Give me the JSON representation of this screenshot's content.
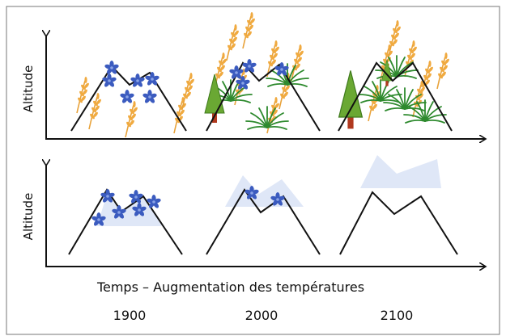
{
  "panels": [
    {
      "y_label": "Altitude"
    },
    {
      "y_label": "Altitude"
    }
  ],
  "x_label": "Temps – Augmentation des températures",
  "years": [
    "1900",
    "2000",
    "2100"
  ]
}
